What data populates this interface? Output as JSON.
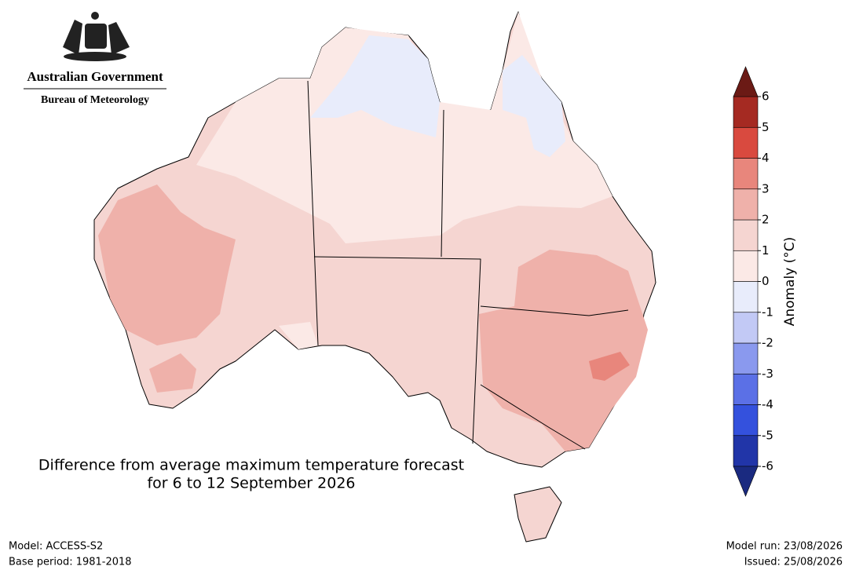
{
  "header": {
    "government": "Australian Government",
    "agency": "Bureau of Meteorology"
  },
  "title": {
    "line1": "Difference from average maximum temperature forecast",
    "line2": "for 6 to 12 September 2026"
  },
  "colorbar": {
    "label": "Anomaly (°C)",
    "ticks": [
      -6,
      -5,
      -4,
      -3,
      -2,
      -1,
      0,
      1,
      2,
      3,
      4,
      5,
      6
    ],
    "colors": [
      "#2135a8",
      "#3451dd",
      "#5b70e6",
      "#8a99ee",
      "#c2c9f5",
      "#e8ecfb",
      "#fbe9e6",
      "#f5d5d1",
      "#efb1aa",
      "#e8867c",
      "#d94a3f",
      "#a52a22"
    ],
    "under_color": "#1a2a80",
    "over_color": "#6b1a15"
  },
  "footer": {
    "model": "Model: ACCESS-S2",
    "base_period": "Base period: 1981-2018",
    "model_run": "Model run: 23/08/2026",
    "issued": "Issued: 25/08/2026"
  }
}
